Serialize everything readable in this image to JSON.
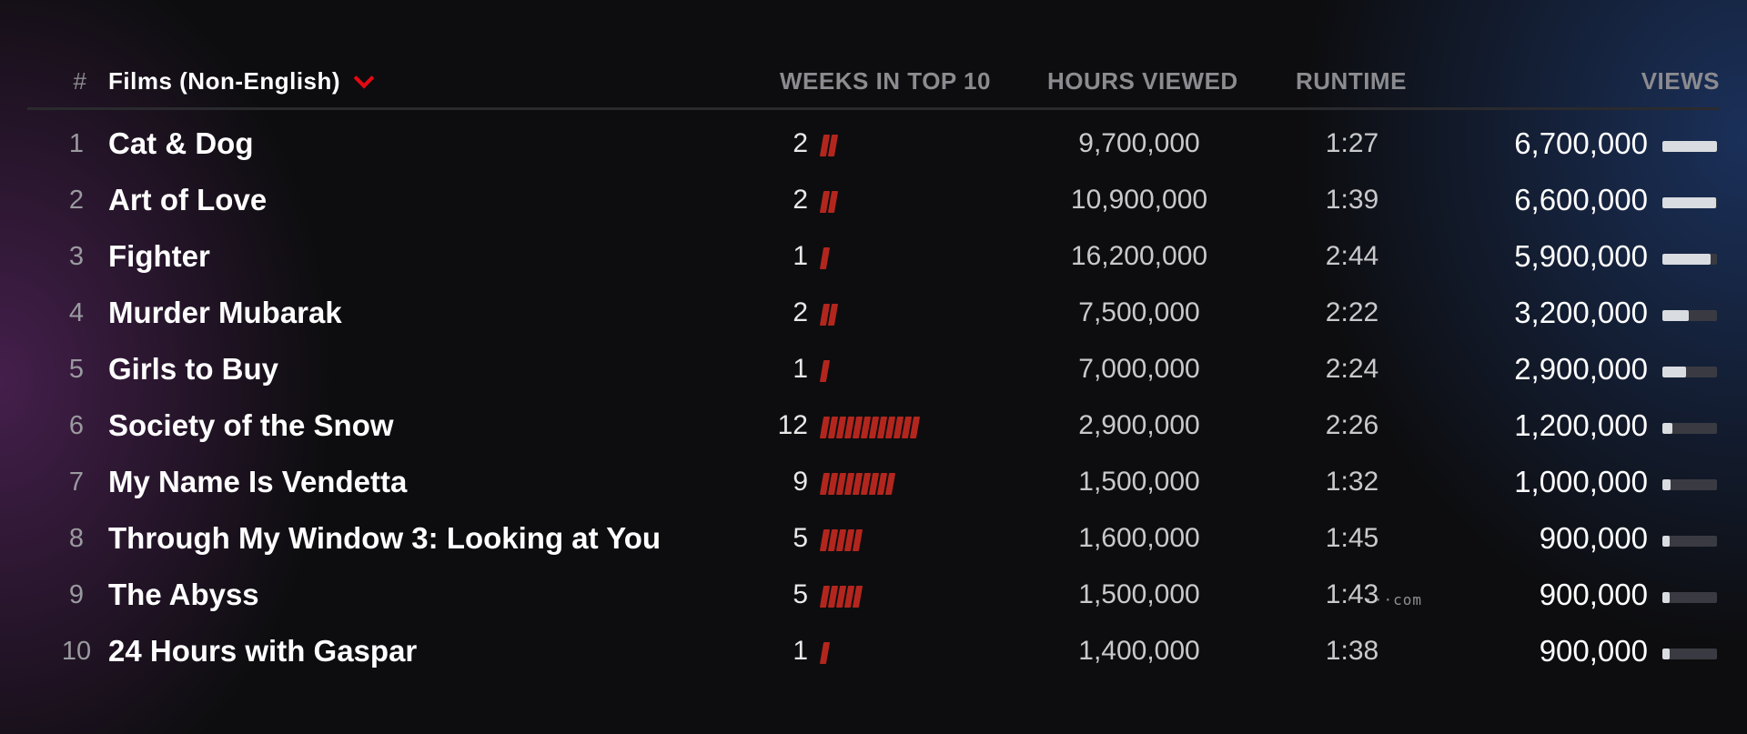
{
  "header": {
    "rank_label": "#",
    "category_label": "Films (Non-English)",
    "weeks_label": "WEEKS IN TOP 10",
    "hours_label": "HOURS VIEWED",
    "runtime_label": "RUNTIME",
    "views_label": "VIEWS",
    "chevron_icon": "chevron-down-icon"
  },
  "colors": {
    "weeks_bar": "#b3261e",
    "views_fill": "#d9dce0",
    "views_track": "#3a3b42",
    "chevron": "#e50914"
  },
  "views_max": 6700000,
  "rows": [
    {
      "rank": "1",
      "title": "Cat & Dog",
      "weeks": 2,
      "hours": "9,700,000",
      "runtime": "1:27",
      "views": "6,700,000",
      "views_value": 6700000
    },
    {
      "rank": "2",
      "title": "Art of Love",
      "weeks": 2,
      "hours": "10,900,000",
      "runtime": "1:39",
      "views": "6,600,000",
      "views_value": 6600000
    },
    {
      "rank": "3",
      "title": "Fighter",
      "weeks": 1,
      "hours": "16,200,000",
      "runtime": "2:44",
      "views": "5,900,000",
      "views_value": 5900000
    },
    {
      "rank": "4",
      "title": "Murder Mubarak",
      "weeks": 2,
      "hours": "7,500,000",
      "runtime": "2:22",
      "views": "3,200,000",
      "views_value": 3200000
    },
    {
      "rank": "5",
      "title": "Girls to Buy",
      "weeks": 1,
      "hours": "7,000,000",
      "runtime": "2:24",
      "views": "2,900,000",
      "views_value": 2900000
    },
    {
      "rank": "6",
      "title": "Society of the Snow",
      "weeks": 12,
      "hours": "2,900,000",
      "runtime": "2:26",
      "views": "1,200,000",
      "views_value": 1200000
    },
    {
      "rank": "7",
      "title": "My Name Is Vendetta",
      "weeks": 9,
      "hours": "1,500,000",
      "runtime": "1:32",
      "views": "1,000,000",
      "views_value": 1000000
    },
    {
      "rank": "8",
      "title": "Through My Window 3: Looking at You",
      "weeks": 5,
      "hours": "1,600,000",
      "runtime": "1:45",
      "views": "900,000",
      "views_value": 900000
    },
    {
      "rank": "9",
      "title": "The Abyss",
      "weeks": 5,
      "hours": "1,500,000",
      "runtime": "1:43",
      "views": "900,000",
      "views_value": 900000
    },
    {
      "rank": "10",
      "title": "24 Hours with Gaspar",
      "weeks": 1,
      "hours": "1,400,000",
      "runtime": "1:38",
      "views": "900,000",
      "views_value": 900000
    }
  ],
  "watermark": "·····com"
}
